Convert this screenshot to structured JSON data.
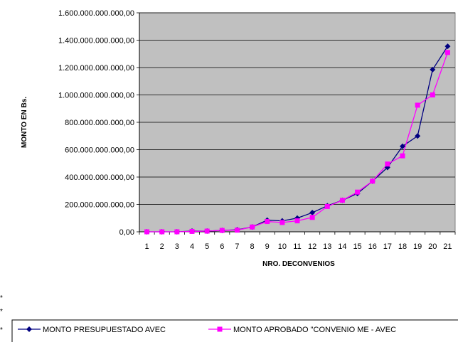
{
  "chart_data": {
    "type": "line",
    "xlabel": "NRO. DECONVENIOS",
    "ylabel": "MONTO EN Bs.",
    "ylim": [
      0,
      1600000000000
    ],
    "y_ticks": [
      "0,00",
      "200.000.000.000,00",
      "400.000.000.000,00",
      "600.000.000.000,00",
      "800.000.000.000,00",
      "1.000.000.000.000,00",
      "1.200.000.000.000,00",
      "1.400.000.000.000,00",
      "1.600.000.000.000,00"
    ],
    "categories": [
      "1",
      "2",
      "3",
      "4",
      "5",
      "6",
      "7",
      "8",
      "9",
      "10",
      "11",
      "12",
      "13",
      "14",
      "15",
      "16",
      "17",
      "18",
      "19",
      "20",
      "21"
    ],
    "grid": "horizontal",
    "plot_background": "#c0c0c0",
    "legend_position": "bottom",
    "series": [
      {
        "name": "MONTO PRESUPUESTADO AVEC",
        "color": "#000080",
        "marker": "diamond",
        "values": [
          0,
          0,
          0,
          5000000000,
          5000000000,
          10000000000,
          15000000000,
          35000000000,
          85000000000,
          80000000000,
          100000000000,
          140000000000,
          190000000000,
          230000000000,
          280000000000,
          370000000000,
          470000000000,
          625000000000,
          700000000000,
          1185000000000,
          1355000000000
        ]
      },
      {
        "name": "MONTO APROBADO \"CONVENIO ME - AVEC",
        "color": "#ff00ff",
        "marker": "square",
        "values": [
          0,
          0,
          0,
          3000000000,
          5000000000,
          10000000000,
          12000000000,
          35000000000,
          75000000000,
          68000000000,
          80000000000,
          105000000000,
          185000000000,
          230000000000,
          290000000000,
          370000000000,
          495000000000,
          555000000000,
          925000000000,
          1000000000000,
          1310000000000
        ]
      }
    ]
  },
  "margin_marks": [
    "*",
    "*",
    "*"
  ]
}
